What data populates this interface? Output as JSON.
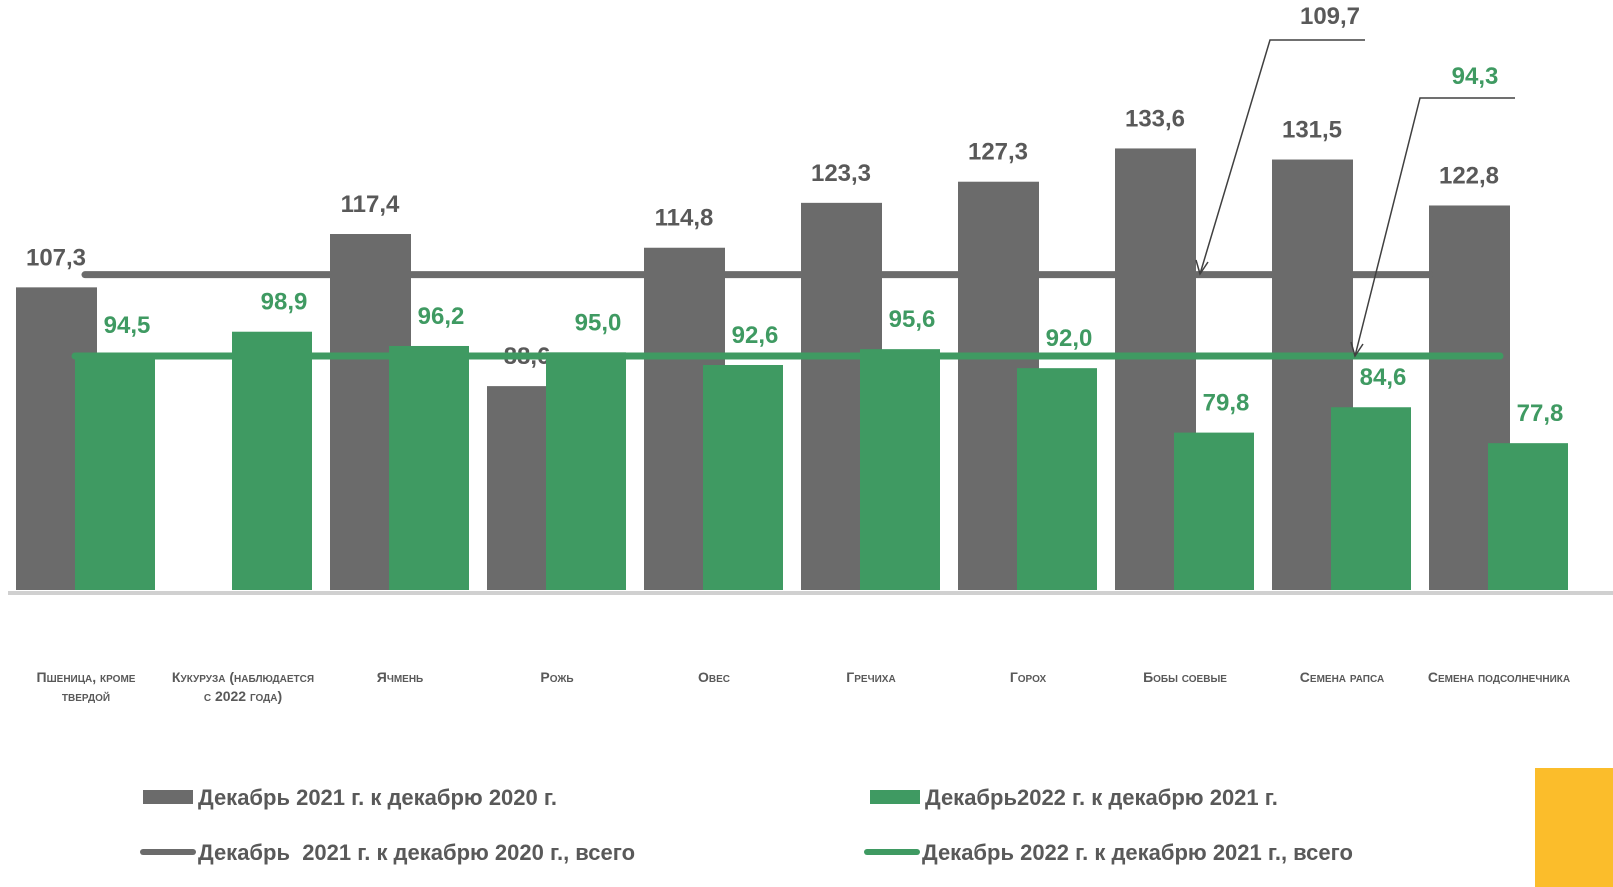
{
  "chart_data": {
    "type": "bar",
    "categories": [
      "Пшеница, кроме твердой",
      "Кукуруза (наблюдается с 2022 года)",
      "Ячмень",
      "Рожь",
      "Овес",
      "Гречиха",
      "Горох",
      "Бобы соевые",
      "Семена рапса",
      "Семена подсолнечника"
    ],
    "series": [
      {
        "name": "Декабрь 2021 г. к декабрю 2020 г.",
        "color": "#6b6b6b",
        "values": [
          107.3,
          null,
          117.4,
          88.6,
          114.8,
          123.3,
          127.3,
          133.6,
          131.5,
          122.8
        ],
        "value_labels": [
          "107,3",
          null,
          "117,4",
          "88,6",
          "114,8",
          "123,3",
          "127,3",
          "133,6",
          "131,5",
          "122,8"
        ]
      },
      {
        "name": "Декабрь2022 г. к декабрю 2021 г.",
        "color": "#3f9a62",
        "values": [
          94.5,
          98.9,
          96.2,
          95.0,
          92.6,
          95.6,
          92.0,
          79.8,
          84.6,
          77.8
        ],
        "value_labels": [
          "94,5",
          "98,9",
          "96,2",
          "95,0",
          "92,6",
          "95,6",
          "92,0",
          "79,8",
          "84,6",
          "77,8"
        ]
      }
    ],
    "lines": [
      {
        "name": "Декабрь  2021 г. к декабрю 2020 г., всего",
        "color": "#6b6b6b",
        "value": 109.7,
        "value_label": "109,7"
      },
      {
        "name": "Декабрь 2022 г. к декабрю 2021 г., всего",
        "color": "#3f9a62",
        "value": 94.3,
        "value_label": "94,3"
      }
    ],
    "ylim": [
      50,
      160
    ],
    "grid": false,
    "legend": "bottom"
  }
}
